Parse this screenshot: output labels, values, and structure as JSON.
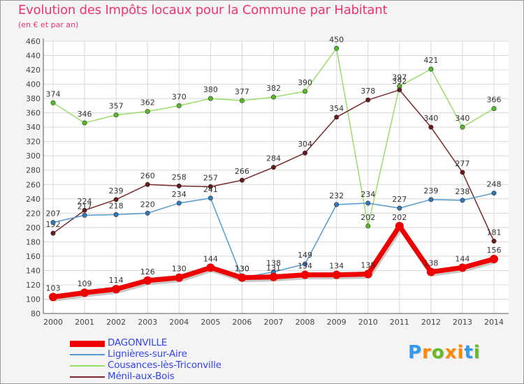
{
  "chart_data": {
    "type": "line",
    "title": "Evolution des Impôts locaux pour la Commune par Habitant",
    "subtitle": "(en € et par an)",
    "xlabel": "",
    "ylabel": "",
    "ylim": [
      80,
      460
    ],
    "ytick_step": 20,
    "grid": true,
    "legend_position": "bottom-left",
    "categories": [
      "2000",
      "2001",
      "2002",
      "2003",
      "2004",
      "2005",
      "2006",
      "2007",
      "2008",
      "2009",
      "2010",
      "2011",
      "2012",
      "2013",
      "2014"
    ],
    "series": [
      {
        "name": "Cousances-lès-Triconville",
        "color": "#99dd66",
        "marker": "#55bb22",
        "values": [
          374,
          346,
          357,
          362,
          370,
          380,
          377,
          382,
          390,
          450,
          202,
          397,
          421,
          340,
          366
        ]
      },
      {
        "name": "Ménil-aux-Bois",
        "color": "#7a2a2a",
        "marker": "#6a1a1a",
        "values": [
          192,
          224,
          239,
          260,
          258,
          257,
          266,
          284,
          304,
          354,
          378,
          392,
          340,
          277,
          181
        ]
      },
      {
        "name": "Lignières-sur-Aire",
        "color": "#5599cc",
        "marker": "#3377bb",
        "values": [
          207,
          217,
          218,
          220,
          234,
          241,
          130,
          138,
          149,
          232,
          234,
          227,
          239,
          238,
          248
        ]
      },
      {
        "name": "DAGONVILLE",
        "color": "#ee0000",
        "marker": "#ee0000",
        "values": [
          103,
          109,
          114,
          126,
          130,
          144,
          130,
          131,
          134,
          134,
          135,
          202,
          138,
          144,
          156
        ]
      }
    ],
    "legend_order": [
      "DAGONVILLE",
      "Lignières-sur-Aire",
      "Cousances-lès-Triconville",
      "Ménil-aux-Bois"
    ]
  },
  "branding": {
    "logo_text": "Proxiti",
    "logo_colors": [
      "#3399ee",
      "#ff8800",
      "#66bb22",
      "#ff8800",
      "#ff8800",
      "#3399ee",
      "#66bb22"
    ]
  }
}
